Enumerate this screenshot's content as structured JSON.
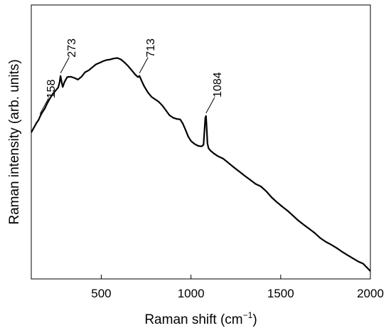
{
  "chart_data": {
    "type": "line",
    "title": "",
    "xlabel_main": "Raman shift (cm",
    "xlabel_sup": "−1",
    "xlabel_close": ")",
    "ylabel": "Raman intensity (arb. units)",
    "xlim": [
      110,
      2000
    ],
    "ylim": [
      0,
      1
    ],
    "x_ticks": [
      500,
      1000,
      1500,
      2000
    ],
    "x_tick_labels": [
      "500",
      "1000",
      "1500",
      "2000"
    ],
    "y_ticks_shown": false,
    "grid": false,
    "legend": "none",
    "line_color": "#000000",
    "series": [
      {
        "x": [
          110,
          125,
          140,
          150,
          158,
          170,
          185,
          200,
          215,
          230,
          245,
          260,
          268,
          273,
          278,
          285,
          295,
          310,
          330,
          350,
          370,
          390,
          410,
          430,
          450,
          470,
          490,
          510,
          530,
          550,
          570,
          590,
          610,
          630,
          650,
          670,
          690,
          705,
          713,
          725,
          740,
          760,
          780,
          800,
          820,
          840,
          860,
          880,
          900,
          920,
          940,
          955,
          970,
          985,
          1000,
          1020,
          1040,
          1060,
          1070,
          1076,
          1080,
          1084,
          1088,
          1092,
          1098,
          1110,
          1130,
          1150,
          1180,
          1210,
          1240,
          1270,
          1300,
          1330,
          1360,
          1390,
          1420,
          1450,
          1480,
          1510,
          1540,
          1570,
          1600,
          1630,
          1660,
          1690,
          1720,
          1750,
          1780,
          1810,
          1840,
          1870,
          1900,
          1930,
          1960,
          2000
        ],
        "y": [
          0.565,
          0.585,
          0.605,
          0.615,
          0.628,
          0.645,
          0.662,
          0.685,
          0.705,
          0.722,
          0.735,
          0.748,
          0.77,
          0.795,
          0.775,
          0.75,
          0.77,
          0.79,
          0.792,
          0.787,
          0.78,
          0.792,
          0.81,
          0.818,
          0.83,
          0.842,
          0.848,
          0.855,
          0.86,
          0.862,
          0.866,
          0.868,
          0.862,
          0.85,
          0.835,
          0.818,
          0.8,
          0.79,
          0.795,
          0.775,
          0.752,
          0.728,
          0.71,
          0.7,
          0.69,
          0.675,
          0.655,
          0.635,
          0.625,
          0.62,
          0.618,
          0.6,
          0.575,
          0.548,
          0.53,
          0.518,
          0.51,
          0.508,
          0.515,
          0.58,
          0.625,
          0.632,
          0.58,
          0.52,
          0.5,
          0.49,
          0.478,
          0.468,
          0.458,
          0.44,
          0.422,
          0.405,
          0.388,
          0.372,
          0.355,
          0.345,
          0.325,
          0.3,
          0.28,
          0.262,
          0.245,
          0.225,
          0.205,
          0.188,
          0.172,
          0.155,
          0.135,
          0.12,
          0.108,
          0.095,
          0.08,
          0.066,
          0.053,
          0.04,
          0.03,
          0.0
        ]
      }
    ],
    "annotations": [
      {
        "label": "158",
        "x": 158
      },
      {
        "label": "273",
        "x": 273
      },
      {
        "label": "713",
        "x": 713
      },
      {
        "label": "1084",
        "x": 1084
      }
    ]
  }
}
